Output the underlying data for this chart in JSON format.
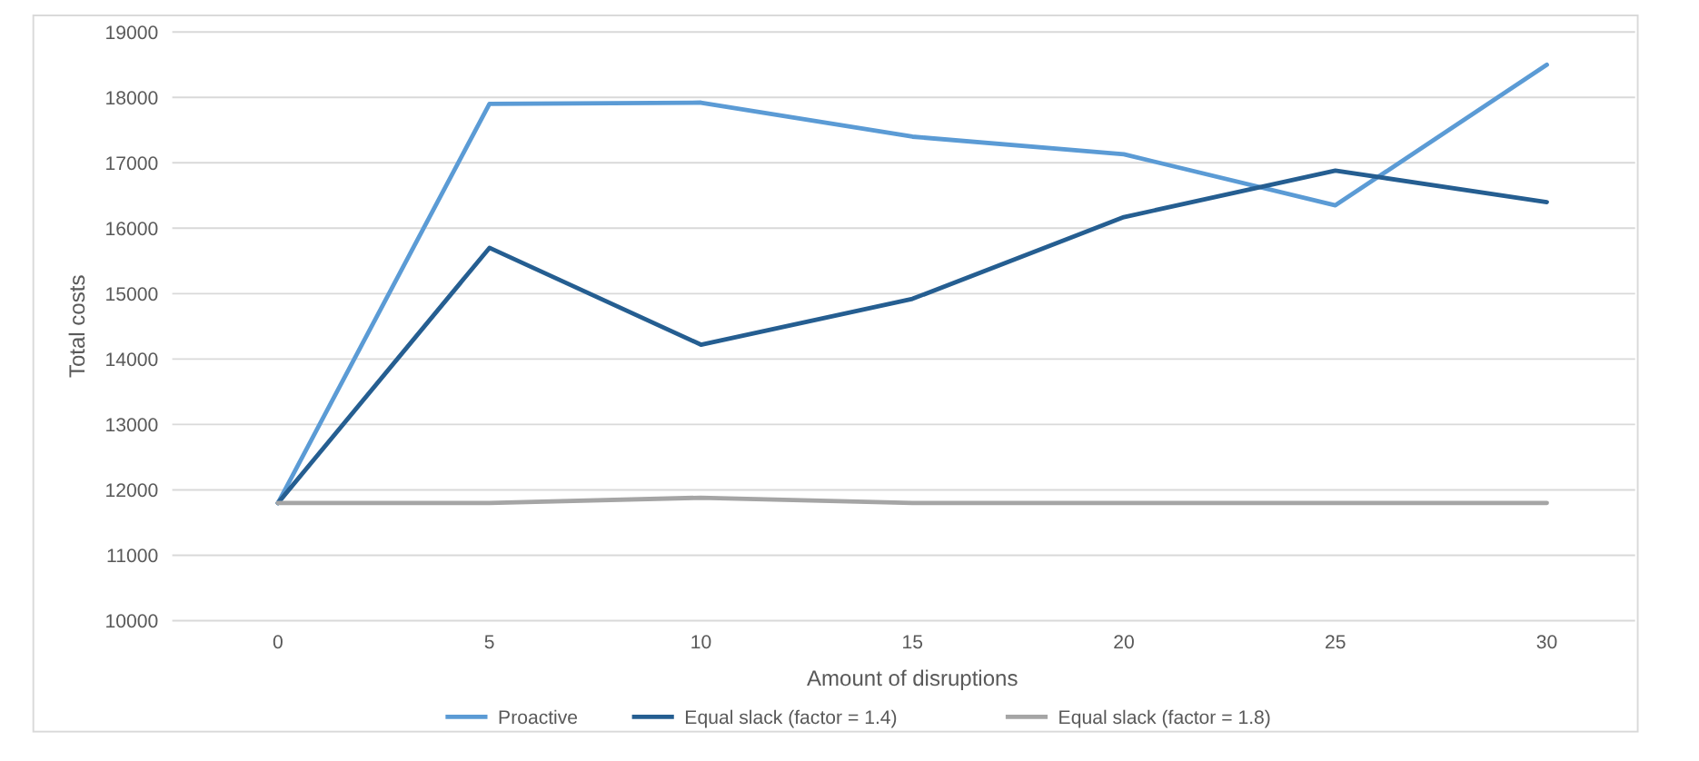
{
  "chart_data": {
    "type": "line",
    "xlabel": "Amount of disruptions",
    "ylabel": "Total costs",
    "categories": [
      "0",
      "5",
      "10",
      "15",
      "20",
      "25",
      "30"
    ],
    "series": [
      {
        "name": "Proactive",
        "color": "#5b9bd5",
        "values": [
          11800,
          17900,
          17920,
          17400,
          17130,
          16350,
          18500
        ]
      },
      {
        "name": "Equal slack (factor = 1.4)",
        "color": "#255e91",
        "values": [
          11800,
          15700,
          14220,
          14920,
          16170,
          16880,
          16400
        ]
      },
      {
        "name": "Equal slack (factor = 1.8)",
        "color": "#a5a5a5",
        "values": [
          11800,
          11800,
          11880,
          11800,
          11800,
          11800,
          11800
        ]
      }
    ],
    "ylim": [
      10000,
      19000
    ],
    "yticks": [
      10000,
      11000,
      12000,
      13000,
      14000,
      15000,
      16000,
      17000,
      18000,
      19000
    ],
    "grid": "y",
    "legend": "bottom",
    "marker": "none",
    "line_style": "solid"
  }
}
